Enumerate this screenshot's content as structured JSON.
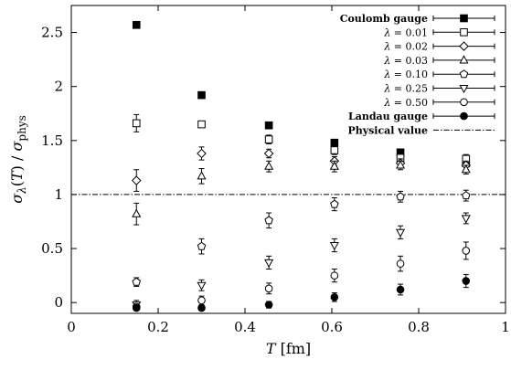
{
  "chart_data": {
    "type": "scatter",
    "xlabel": "T [fm]",
    "ylabel": "σ_λ(T) / σ_phys",
    "xlim": [
      0,
      1
    ],
    "ylim": [
      -0.1,
      2.75
    ],
    "xticks": [
      "0",
      "0.2",
      "0.4",
      "0.6",
      "0.8",
      "1"
    ],
    "yticks": [
      "0",
      "0.5",
      "1",
      "1.5",
      "2",
      "2.5"
    ],
    "legend_position": "top-right",
    "reference_line": {
      "name": "Physical value",
      "y": 1.0,
      "style": "dash-dot"
    },
    "series": [
      {
        "name": "Coulomb gauge",
        "marker": "filled-square",
        "x": [
          0.15,
          0.3,
          0.455,
          0.606,
          0.758,
          0.909
        ],
        "y": [
          2.57,
          1.92,
          1.64,
          1.48,
          1.39,
          1.29
        ],
        "err": [
          0.02,
          0.02,
          0.02,
          0.02,
          0.02,
          0.02
        ]
      },
      {
        "name": "λ = 0.01",
        "marker": "open-square",
        "x": [
          0.15,
          0.3,
          0.455,
          0.606,
          0.758,
          0.909
        ],
        "y": [
          1.66,
          1.65,
          1.51,
          1.41,
          1.34,
          1.33
        ],
        "err": [
          0.08,
          0.03,
          0.04,
          0.04,
          0.04,
          0.04
        ]
      },
      {
        "name": "λ = 0.02",
        "marker": "open-diamond",
        "x": [
          0.15,
          0.3,
          0.455,
          0.606,
          0.758,
          0.909
        ],
        "y": [
          1.13,
          1.38,
          1.38,
          1.31,
          1.29,
          1.27
        ],
        "err": [
          0.1,
          0.06,
          0.04,
          0.04,
          0.04,
          0.04
        ]
      },
      {
        "name": "λ = 0.03",
        "marker": "open-triangle-up",
        "x": [
          0.15,
          0.3,
          0.455,
          0.606,
          0.758,
          0.909
        ],
        "y": [
          0.82,
          1.17,
          1.26,
          1.26,
          1.27,
          1.23
        ],
        "err": [
          0.1,
          0.07,
          0.05,
          0.05,
          0.04,
          0.04
        ]
      },
      {
        "name": "λ = 0.10",
        "marker": "open-pentagon",
        "x": [
          0.15,
          0.3,
          0.455,
          0.606,
          0.758,
          0.909
        ],
        "y": [
          0.19,
          0.52,
          0.76,
          0.91,
          0.98,
          0.99
        ],
        "err": [
          0.04,
          0.07,
          0.07,
          0.06,
          0.05,
          0.05
        ]
      },
      {
        "name": "λ = 0.25",
        "marker": "open-triangle-down",
        "x": [
          0.15,
          0.3,
          0.455,
          0.606,
          0.758,
          0.909
        ],
        "y": [
          -0.02,
          0.16,
          0.37,
          0.53,
          0.65,
          0.78
        ],
        "err": [
          0.04,
          0.05,
          0.06,
          0.06,
          0.06,
          0.05
        ]
      },
      {
        "name": "λ = 0.50",
        "marker": "open-circle",
        "x": [
          0.15,
          0.3,
          0.455,
          0.606,
          0.758,
          0.909
        ],
        "y": [
          -0.04,
          0.02,
          0.13,
          0.25,
          0.36,
          0.48
        ],
        "err": [
          0.03,
          0.04,
          0.05,
          0.06,
          0.07,
          0.08
        ]
      },
      {
        "name": "Landau gauge",
        "marker": "filled-circle",
        "x": [
          0.15,
          0.3,
          0.455,
          0.606,
          0.758,
          0.909
        ],
        "y": [
          -0.05,
          -0.05,
          -0.02,
          0.05,
          0.12,
          0.2
        ],
        "err": [
          0.02,
          0.02,
          0.03,
          0.04,
          0.05,
          0.06
        ]
      }
    ]
  }
}
